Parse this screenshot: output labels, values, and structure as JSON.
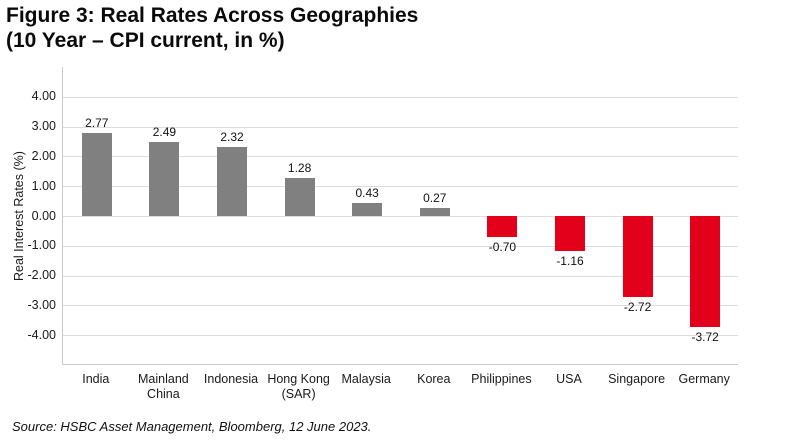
{
  "figure": {
    "title_line1": "Figure 3: Real Rates Across Geographies",
    "title_line2": "(10 Year – CPI current, in %)",
    "source": "Source: HSBC Asset Management, Bloomberg, 12 June 2023."
  },
  "chart_data": {
    "type": "bar",
    "title": "Figure 3: Real Rates Across Geographies (10 Year – CPI current, in %)",
    "categories": [
      "India",
      "Mainland China",
      "Indonesia",
      "Hong Kong (SAR)",
      "Malaysia",
      "Korea",
      "Philippines",
      "USA",
      "Singapore",
      "Germany"
    ],
    "category_display": [
      "India",
      "Mainland\nChina",
      "Indonesia",
      "Hong Kong\n(SAR)",
      "Malaysia",
      "Korea",
      "Philippines",
      "USA",
      "Singapore",
      "Germany"
    ],
    "values": [
      2.77,
      2.49,
      2.32,
      1.28,
      0.43,
      0.27,
      -0.7,
      -1.16,
      -2.72,
      -3.72
    ],
    "value_labels": [
      "2.77",
      "2.49",
      "2.32",
      "1.28",
      "0.43",
      "0.27",
      "-0.70",
      "-1.16",
      "-2.72",
      "-3.72"
    ],
    "xlabel": "",
    "ylabel": "Real Interest Rates (%)",
    "ylim": [
      -5,
      5
    ],
    "yticks": [
      4,
      3,
      2,
      1,
      0,
      -1,
      -2,
      -3,
      -4
    ],
    "ytick_labels": [
      "4.00",
      "3.00",
      "2.00",
      "1.00",
      "0.00",
      "-1.00",
      "-2.00",
      "-3.00",
      "-4.00"
    ],
    "grid": true,
    "legend": false,
    "colors": {
      "positive_bar": "#808080",
      "negative_bar": "#E2001A",
      "gridline": "#DCDCDC",
      "axis_line": "#C9C9C9"
    }
  }
}
